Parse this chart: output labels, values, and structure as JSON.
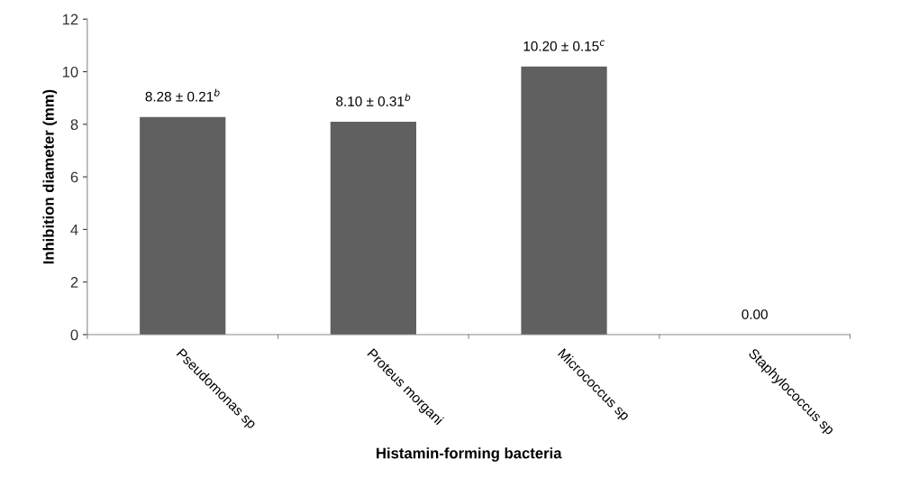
{
  "chart_data": {
    "type": "bar",
    "xlabel": "Histamin-forming bacteria",
    "ylabel": "Inhibition diameter (mm)",
    "categories": [
      "Pseudomonas sp",
      "Proteus morgani",
      "Micrococcus sp",
      "Staphylococcus sp"
    ],
    "values": [
      8.28,
      8.1,
      10.2,
      0.0
    ],
    "value_labels": [
      "8.28 ± 0.21$^{b}$",
      "8.10 ± 0.31$^{b}$",
      "10.20 ± 0.15$^{c}$",
      "0.00"
    ],
    "color": "#606060",
    "ylim": [
      0,
      12
    ],
    "yticks": [
      0,
      2,
      4,
      6,
      8,
      10,
      12
    ],
    "grid": false,
    "legend": false
  }
}
